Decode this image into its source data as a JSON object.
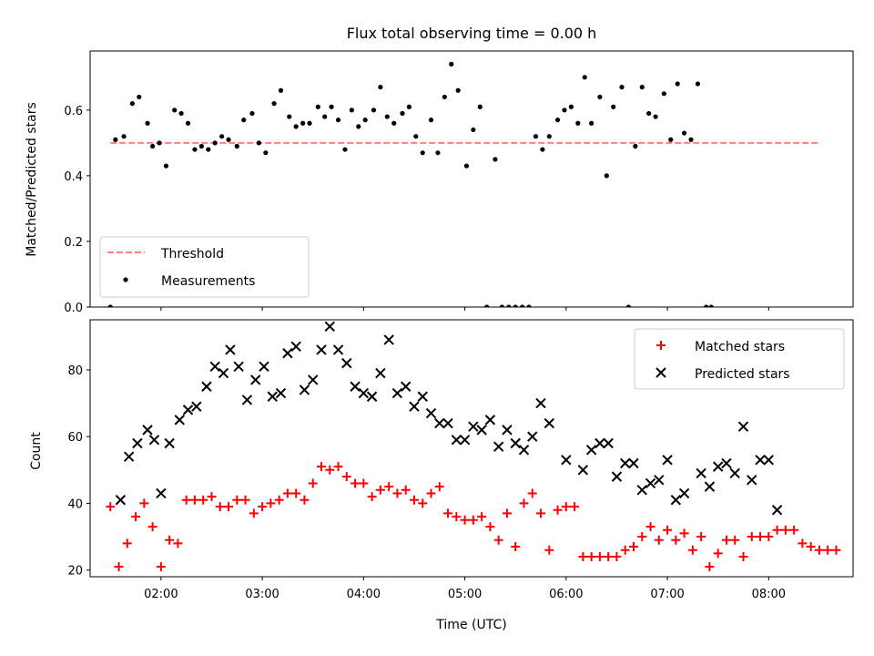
{
  "chart_data": {
    "type": "scatter",
    "title": "Flux total observing time = 0.00 h",
    "xlabel": "Time (UTC)",
    "x_ticks": [
      "02:00",
      "03:00",
      "04:00",
      "05:00",
      "06:00",
      "07:00",
      "08:00"
    ],
    "top_panel": {
      "ylabel": "Matched/Predicted stars",
      "ylim": [
        0,
        0.78
      ],
      "y_ticks": [
        "0.0",
        "0.2",
        "0.4",
        "0.6"
      ],
      "legend_position": "lower-left",
      "threshold": {
        "name": "Threshold",
        "value": 0.5,
        "x_range": [
          "01:30",
          "08:30"
        ],
        "color": "#ff7f7f"
      },
      "measurements": {
        "name": "Measurements",
        "color": "#000000",
        "points": [
          [
            "01:30",
            0.0
          ],
          [
            "01:33",
            0.51
          ],
          [
            "01:38",
            0.52
          ],
          [
            "01:43",
            0.62
          ],
          [
            "01:47",
            0.64
          ],
          [
            "01:52",
            0.56
          ],
          [
            "01:55",
            0.49
          ],
          [
            "01:59",
            0.5
          ],
          [
            "02:03",
            0.43
          ],
          [
            "02:08",
            0.6
          ],
          [
            "02:12",
            0.59
          ],
          [
            "02:16",
            0.56
          ],
          [
            "02:20",
            0.48
          ],
          [
            "02:24",
            0.49
          ],
          [
            "02:28",
            0.48
          ],
          [
            "02:32",
            0.5
          ],
          [
            "02:36",
            0.52
          ],
          [
            "02:40",
            0.51
          ],
          [
            "02:45",
            0.49
          ],
          [
            "02:49",
            0.57
          ],
          [
            "02:54",
            0.59
          ],
          [
            "02:58",
            0.5
          ],
          [
            "03:02",
            0.47
          ],
          [
            "03:07",
            0.62
          ],
          [
            "03:11",
            0.66
          ],
          [
            "03:16",
            0.58
          ],
          [
            "03:20",
            0.55
          ],
          [
            "03:24",
            0.56
          ],
          [
            "03:28",
            0.56
          ],
          [
            "03:33",
            0.61
          ],
          [
            "03:37",
            0.58
          ],
          [
            "03:41",
            0.61
          ],
          [
            "03:45",
            0.57
          ],
          [
            "03:49",
            0.48
          ],
          [
            "03:53",
            0.6
          ],
          [
            "03:57",
            0.55
          ],
          [
            "04:01",
            0.57
          ],
          [
            "04:06",
            0.6
          ],
          [
            "04:10",
            0.67
          ],
          [
            "04:14",
            0.58
          ],
          [
            "04:18",
            0.56
          ],
          [
            "04:23",
            0.59
          ],
          [
            "04:27",
            0.61
          ],
          [
            "04:31",
            0.52
          ],
          [
            "04:35",
            0.47
          ],
          [
            "04:40",
            0.57
          ],
          [
            "04:44",
            0.47
          ],
          [
            "04:48",
            0.64
          ],
          [
            "04:52",
            0.74
          ],
          [
            "04:56",
            0.66
          ],
          [
            "05:01",
            0.43
          ],
          [
            "05:05",
            0.54
          ],
          [
            "05:09",
            0.61
          ],
          [
            "05:13",
            0.0
          ],
          [
            "05:18",
            0.45
          ],
          [
            "05:22",
            0.0
          ],
          [
            "05:26",
            0.0
          ],
          [
            "05:30",
            0.0
          ],
          [
            "05:34",
            0.0
          ],
          [
            "05:38",
            0.0
          ],
          [
            "05:42",
            0.52
          ],
          [
            "05:46",
            0.48
          ],
          [
            "05:50",
            0.52
          ],
          [
            "05:55",
            0.57
          ],
          [
            "05:59",
            0.6
          ],
          [
            "06:03",
            0.61
          ],
          [
            "06:07",
            0.56
          ],
          [
            "06:11",
            0.7
          ],
          [
            "06:15",
            0.56
          ],
          [
            "06:20",
            0.64
          ],
          [
            "06:24",
            0.4
          ],
          [
            "06:28",
            0.61
          ],
          [
            "06:33",
            0.67
          ],
          [
            "06:37",
            0.0
          ],
          [
            "06:41",
            0.49
          ],
          [
            "06:45",
            0.67
          ],
          [
            "06:49",
            0.59
          ],
          [
            "06:53",
            0.58
          ],
          [
            "06:58",
            0.65
          ],
          [
            "07:02",
            0.51
          ],
          [
            "07:06",
            0.68
          ],
          [
            "07:10",
            0.53
          ],
          [
            "07:14",
            0.51
          ],
          [
            "07:18",
            0.68
          ],
          [
            "07:23",
            0.0
          ],
          [
            "07:26",
            0.0
          ]
        ]
      }
    },
    "bottom_panel": {
      "ylabel": "Count",
      "ylim": [
        18,
        95
      ],
      "y_ticks": [
        "20",
        "40",
        "60",
        "80"
      ],
      "legend_position": "upper-right",
      "series": [
        {
          "name": "Matched stars",
          "marker": "plus",
          "color": "#ff0000",
          "points": [
            [
              "01:30",
              39
            ],
            [
              "01:35",
              21
            ],
            [
              "01:40",
              28
            ],
            [
              "01:45",
              36
            ],
            [
              "01:50",
              40
            ],
            [
              "01:55",
              33
            ],
            [
              "02:00",
              21
            ],
            [
              "02:05",
              29
            ],
            [
              "02:10",
              28
            ],
            [
              "02:15",
              41
            ],
            [
              "02:20",
              41
            ],
            [
              "02:25",
              41
            ],
            [
              "02:30",
              42
            ],
            [
              "02:35",
              39
            ],
            [
              "02:40",
              39
            ],
            [
              "02:45",
              41
            ],
            [
              "02:50",
              41
            ],
            [
              "02:55",
              37
            ],
            [
              "03:00",
              39
            ],
            [
              "03:05",
              40
            ],
            [
              "03:10",
              41
            ],
            [
              "03:15",
              43
            ],
            [
              "03:20",
              43
            ],
            [
              "03:25",
              41
            ],
            [
              "03:30",
              46
            ],
            [
              "03:35",
              51
            ],
            [
              "03:40",
              50
            ],
            [
              "03:45",
              51
            ],
            [
              "03:50",
              48
            ],
            [
              "03:55",
              46
            ],
            [
              "04:00",
              46
            ],
            [
              "04:05",
              42
            ],
            [
              "04:10",
              44
            ],
            [
              "04:15",
              45
            ],
            [
              "04:20",
              43
            ],
            [
              "04:25",
              44
            ],
            [
              "04:30",
              41
            ],
            [
              "04:35",
              40
            ],
            [
              "04:40",
              43
            ],
            [
              "04:45",
              45
            ],
            [
              "04:50",
              37
            ],
            [
              "04:55",
              36
            ],
            [
              "05:00",
              35
            ],
            [
              "05:05",
              35
            ],
            [
              "05:10",
              36
            ],
            [
              "05:15",
              33
            ],
            [
              "05:20",
              29
            ],
            [
              "05:25",
              37
            ],
            [
              "05:30",
              27
            ],
            [
              "05:35",
              40
            ],
            [
              "05:40",
              43
            ],
            [
              "05:45",
              37
            ],
            [
              "05:50",
              26
            ],
            [
              "05:55",
              38
            ],
            [
              "06:00",
              39
            ],
            [
              "06:05",
              39
            ],
            [
              "06:10",
              24
            ],
            [
              "06:15",
              24
            ],
            [
              "06:20",
              24
            ],
            [
              "06:25",
              24
            ],
            [
              "06:30",
              24
            ],
            [
              "06:35",
              26
            ],
            [
              "06:40",
              27
            ],
            [
              "06:45",
              30
            ],
            [
              "06:50",
              33
            ],
            [
              "06:55",
              29
            ],
            [
              "07:00",
              32
            ],
            [
              "07:05",
              29
            ],
            [
              "07:10",
              31
            ],
            [
              "07:15",
              26
            ],
            [
              "07:20",
              30
            ],
            [
              "07:25",
              21
            ],
            [
              "07:30",
              25
            ],
            [
              "07:35",
              29
            ],
            [
              "07:40",
              29
            ],
            [
              "07:45",
              24
            ],
            [
              "07:50",
              30
            ],
            [
              "07:55",
              30
            ],
            [
              "08:00",
              30
            ],
            [
              "08:05",
              32
            ],
            [
              "08:10",
              32
            ],
            [
              "08:15",
              32
            ],
            [
              "08:20",
              28
            ],
            [
              "08:25",
              27
            ],
            [
              "08:30",
              26
            ],
            [
              "08:35",
              26
            ],
            [
              "08:40",
              26
            ]
          ]
        },
        {
          "name": "Predicted stars",
          "marker": "x",
          "color": "#000000",
          "points": [
            [
              "01:36",
              41
            ],
            [
              "01:41",
              54
            ],
            [
              "01:46",
              58
            ],
            [
              "01:52",
              62
            ],
            [
              "01:56",
              59
            ],
            [
              "02:00",
              43
            ],
            [
              "02:05",
              58
            ],
            [
              "02:11",
              65
            ],
            [
              "02:16",
              68
            ],
            [
              "02:21",
              69
            ],
            [
              "02:27",
              75
            ],
            [
              "02:32",
              81
            ],
            [
              "02:37",
              79
            ],
            [
              "02:41",
              86
            ],
            [
              "02:46",
              81
            ],
            [
              "02:51",
              71
            ],
            [
              "02:56",
              77
            ],
            [
              "03:01",
              81
            ],
            [
              "03:06",
              72
            ],
            [
              "03:11",
              73
            ],
            [
              "03:15",
              85
            ],
            [
              "03:20",
              87
            ],
            [
              "03:25",
              74
            ],
            [
              "03:30",
              77
            ],
            [
              "03:35",
              86
            ],
            [
              "03:40",
              93
            ],
            [
              "03:45",
              86
            ],
            [
              "03:50",
              82
            ],
            [
              "03:55",
              75
            ],
            [
              "04:00",
              73
            ],
            [
              "04:05",
              72
            ],
            [
              "04:10",
              79
            ],
            [
              "04:15",
              89
            ],
            [
              "04:20",
              73
            ],
            [
              "04:25",
              75
            ],
            [
              "04:30",
              69
            ],
            [
              "04:35",
              72
            ],
            [
              "04:40",
              67
            ],
            [
              "04:45",
              64
            ],
            [
              "04:50",
              64
            ],
            [
              "04:55",
              59
            ],
            [
              "05:00",
              59
            ],
            [
              "05:05",
              63
            ],
            [
              "05:10",
              62
            ],
            [
              "05:15",
              65
            ],
            [
              "05:20",
              57
            ],
            [
              "05:25",
              62
            ],
            [
              "05:30",
              58
            ],
            [
              "05:35",
              56
            ],
            [
              "05:40",
              60
            ],
            [
              "05:45",
              70
            ],
            [
              "05:50",
              64
            ],
            [
              "06:00",
              53
            ],
            [
              "06:10",
              50
            ],
            [
              "06:15",
              56
            ],
            [
              "06:20",
              58
            ],
            [
              "06:25",
              58
            ],
            [
              "06:30",
              48
            ],
            [
              "06:35",
              52
            ],
            [
              "06:40",
              52
            ],
            [
              "06:45",
              44
            ],
            [
              "06:50",
              46
            ],
            [
              "06:55",
              47
            ],
            [
              "07:00",
              53
            ],
            [
              "07:05",
              41
            ],
            [
              "07:10",
              43
            ],
            [
              "07:20",
              49
            ],
            [
              "07:25",
              45
            ],
            [
              "07:30",
              51
            ],
            [
              "07:35",
              52
            ],
            [
              "07:40",
              49
            ],
            [
              "07:45",
              63
            ],
            [
              "07:50",
              47
            ],
            [
              "07:55",
              53
            ],
            [
              "08:00",
              53
            ],
            [
              "08:05",
              38
            ]
          ]
        }
      ]
    }
  }
}
